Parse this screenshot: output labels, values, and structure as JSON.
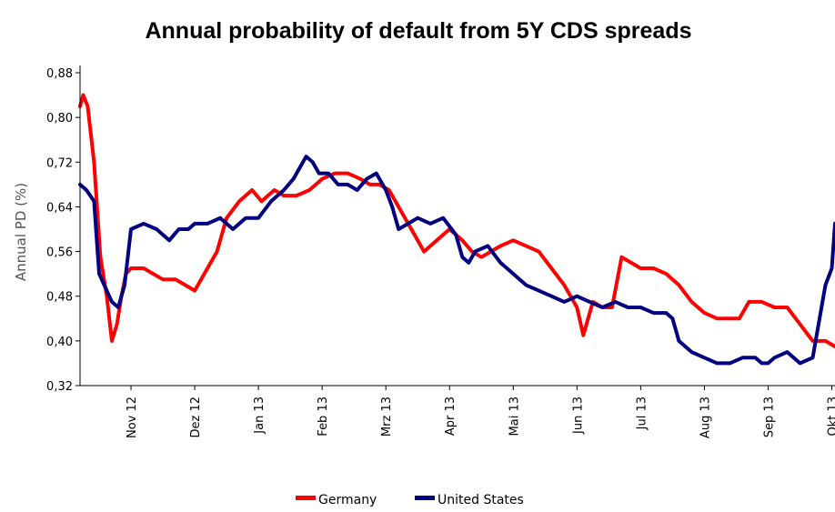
{
  "chart_data": {
    "type": "line",
    "title": "Annual probability of default from 5Y CDS spreads",
    "ylabel": "Annual PD (%)",
    "xlabel": "",
    "ylim": [
      0.32,
      0.88
    ],
    "yticks": [
      "0,32",
      "0,40",
      "0,48",
      "0,56",
      "0,64",
      "0,72",
      "0,80",
      "0,88"
    ],
    "x_tick_labels": [
      "Nov 12",
      "Dez 12",
      "Jan 13",
      "Feb 13",
      "Mrz 13",
      "Apr 13",
      "Mai 13",
      "Jun 13",
      "Jul 13",
      "Aug 13",
      "Sep 13",
      "Okt 13"
    ],
    "x_tick_positions": [
      1,
      2,
      3,
      4,
      5,
      6,
      7,
      8,
      9,
      10,
      11,
      12
    ],
    "xlim": [
      0.2,
      12.05
    ],
    "grid": false,
    "legend_position": "bottom",
    "colors": {
      "Germany": "#ff0000",
      "United States": "#000080"
    },
    "series": [
      {
        "name": "Germany",
        "x": [
          0.2,
          0.25,
          0.32,
          0.42,
          0.52,
          0.62,
          0.7,
          0.78,
          0.85,
          0.92,
          1.0,
          1.2,
          1.5,
          1.7,
          1.85,
          2.0,
          2.15,
          2.35,
          2.5,
          2.7,
          2.9,
          3.05,
          3.25,
          3.4,
          3.6,
          3.8,
          4.0,
          4.2,
          4.4,
          4.6,
          4.75,
          4.9,
          5.05,
          5.2,
          5.4,
          5.6,
          5.8,
          6.0,
          6.2,
          6.35,
          6.5,
          6.65,
          6.8,
          7.0,
          7.2,
          7.4,
          7.6,
          7.8,
          7.9,
          8.0,
          8.1,
          8.25,
          8.4,
          8.55,
          8.7,
          8.85,
          9.0,
          9.2,
          9.4,
          9.6,
          9.8,
          10.0,
          10.2,
          10.4,
          10.55,
          10.7,
          10.9,
          11.1,
          11.3,
          11.5,
          11.7,
          11.9,
          12.05
        ],
        "values": [
          0.82,
          0.84,
          0.82,
          0.72,
          0.55,
          0.48,
          0.4,
          0.43,
          0.48,
          0.52,
          0.53,
          0.53,
          0.51,
          0.51,
          0.5,
          0.49,
          0.52,
          0.56,
          0.62,
          0.65,
          0.67,
          0.65,
          0.67,
          0.66,
          0.66,
          0.67,
          0.69,
          0.7,
          0.7,
          0.69,
          0.68,
          0.68,
          0.67,
          0.64,
          0.6,
          0.56,
          0.58,
          0.6,
          0.58,
          0.56,
          0.55,
          0.56,
          0.57,
          0.58,
          0.57,
          0.56,
          0.53,
          0.5,
          0.48,
          0.46,
          0.41,
          0.47,
          0.46,
          0.46,
          0.55,
          0.54,
          0.53,
          0.53,
          0.52,
          0.5,
          0.47,
          0.45,
          0.44,
          0.44,
          0.44,
          0.47,
          0.47,
          0.46,
          0.46,
          0.43,
          0.4,
          0.4,
          0.39
        ]
      },
      {
        "name": "United States",
        "x": [
          0.2,
          0.3,
          0.42,
          0.5,
          0.58,
          0.7,
          0.8,
          0.9,
          1.0,
          1.2,
          1.4,
          1.6,
          1.75,
          1.9,
          2.0,
          2.2,
          2.4,
          2.6,
          2.8,
          3.0,
          3.2,
          3.4,
          3.55,
          3.65,
          3.75,
          3.85,
          3.95,
          4.1,
          4.25,
          4.4,
          4.55,
          4.7,
          4.85,
          5.0,
          5.1,
          5.2,
          5.35,
          5.5,
          5.7,
          5.9,
          6.1,
          6.2,
          6.3,
          6.4,
          6.6,
          6.8,
          7.0,
          7.2,
          7.4,
          7.6,
          7.8,
          8.0,
          8.2,
          8.4,
          8.6,
          8.8,
          9.0,
          9.2,
          9.4,
          9.5,
          9.6,
          9.8,
          10.0,
          10.2,
          10.4,
          10.6,
          10.8,
          10.9,
          11.0,
          11.1,
          11.3,
          11.5,
          11.7,
          11.9,
          12.0,
          12.05
        ],
        "values": [
          0.68,
          0.67,
          0.65,
          0.52,
          0.5,
          0.47,
          0.46,
          0.5,
          0.6,
          0.61,
          0.6,
          0.58,
          0.6,
          0.6,
          0.61,
          0.61,
          0.62,
          0.6,
          0.62,
          0.62,
          0.65,
          0.67,
          0.69,
          0.71,
          0.73,
          0.72,
          0.7,
          0.7,
          0.68,
          0.68,
          0.67,
          0.69,
          0.7,
          0.67,
          0.64,
          0.6,
          0.61,
          0.62,
          0.61,
          0.62,
          0.59,
          0.55,
          0.54,
          0.56,
          0.57,
          0.54,
          0.52,
          0.5,
          0.49,
          0.48,
          0.47,
          0.48,
          0.47,
          0.46,
          0.47,
          0.46,
          0.46,
          0.45,
          0.45,
          0.44,
          0.4,
          0.38,
          0.37,
          0.36,
          0.36,
          0.37,
          0.37,
          0.36,
          0.36,
          0.37,
          0.38,
          0.36,
          0.37,
          0.5,
          0.53,
          0.61
        ]
      }
    ]
  }
}
